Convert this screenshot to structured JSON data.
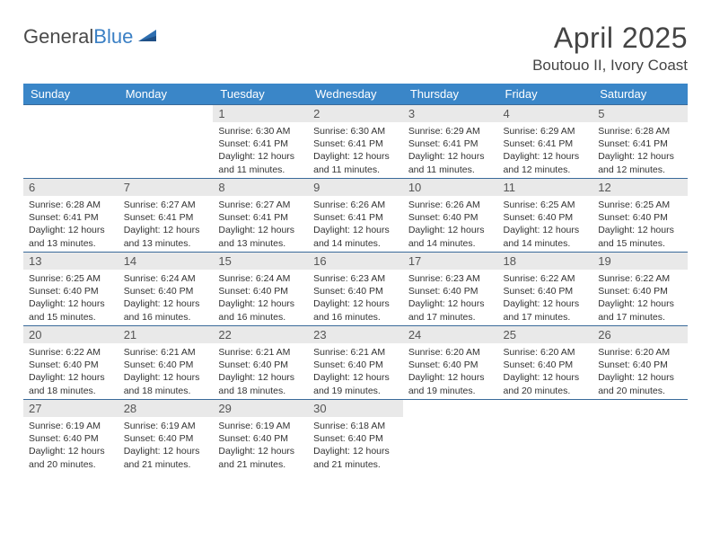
{
  "brand": {
    "name_gray": "General",
    "name_blue": "Blue"
  },
  "title": "April 2025",
  "location": "Boutouo II, Ivory Coast",
  "colors": {
    "header_bg": "#3a86c8",
    "header_text": "#ffffff",
    "daynum_bg": "#e9e9e9",
    "rule": "#3a6a9a",
    "body_text": "#333333",
    "logo_blue": "#3a7fc4"
  },
  "weekdays": [
    "Sunday",
    "Monday",
    "Tuesday",
    "Wednesday",
    "Thursday",
    "Friday",
    "Saturday"
  ],
  "weeks": [
    [
      null,
      null,
      {
        "n": "1",
        "sr": "Sunrise: 6:30 AM",
        "ss": "Sunset: 6:41 PM",
        "dl": "Daylight: 12 hours and 11 minutes."
      },
      {
        "n": "2",
        "sr": "Sunrise: 6:30 AM",
        "ss": "Sunset: 6:41 PM",
        "dl": "Daylight: 12 hours and 11 minutes."
      },
      {
        "n": "3",
        "sr": "Sunrise: 6:29 AM",
        "ss": "Sunset: 6:41 PM",
        "dl": "Daylight: 12 hours and 11 minutes."
      },
      {
        "n": "4",
        "sr": "Sunrise: 6:29 AM",
        "ss": "Sunset: 6:41 PM",
        "dl": "Daylight: 12 hours and 12 minutes."
      },
      {
        "n": "5",
        "sr": "Sunrise: 6:28 AM",
        "ss": "Sunset: 6:41 PM",
        "dl": "Daylight: 12 hours and 12 minutes."
      }
    ],
    [
      {
        "n": "6",
        "sr": "Sunrise: 6:28 AM",
        "ss": "Sunset: 6:41 PM",
        "dl": "Daylight: 12 hours and 13 minutes."
      },
      {
        "n": "7",
        "sr": "Sunrise: 6:27 AM",
        "ss": "Sunset: 6:41 PM",
        "dl": "Daylight: 12 hours and 13 minutes."
      },
      {
        "n": "8",
        "sr": "Sunrise: 6:27 AM",
        "ss": "Sunset: 6:41 PM",
        "dl": "Daylight: 12 hours and 13 minutes."
      },
      {
        "n": "9",
        "sr": "Sunrise: 6:26 AM",
        "ss": "Sunset: 6:41 PM",
        "dl": "Daylight: 12 hours and 14 minutes."
      },
      {
        "n": "10",
        "sr": "Sunrise: 6:26 AM",
        "ss": "Sunset: 6:40 PM",
        "dl": "Daylight: 12 hours and 14 minutes."
      },
      {
        "n": "11",
        "sr": "Sunrise: 6:25 AM",
        "ss": "Sunset: 6:40 PM",
        "dl": "Daylight: 12 hours and 14 minutes."
      },
      {
        "n": "12",
        "sr": "Sunrise: 6:25 AM",
        "ss": "Sunset: 6:40 PM",
        "dl": "Daylight: 12 hours and 15 minutes."
      }
    ],
    [
      {
        "n": "13",
        "sr": "Sunrise: 6:25 AM",
        "ss": "Sunset: 6:40 PM",
        "dl": "Daylight: 12 hours and 15 minutes."
      },
      {
        "n": "14",
        "sr": "Sunrise: 6:24 AM",
        "ss": "Sunset: 6:40 PM",
        "dl": "Daylight: 12 hours and 16 minutes."
      },
      {
        "n": "15",
        "sr": "Sunrise: 6:24 AM",
        "ss": "Sunset: 6:40 PM",
        "dl": "Daylight: 12 hours and 16 minutes."
      },
      {
        "n": "16",
        "sr": "Sunrise: 6:23 AM",
        "ss": "Sunset: 6:40 PM",
        "dl": "Daylight: 12 hours and 16 minutes."
      },
      {
        "n": "17",
        "sr": "Sunrise: 6:23 AM",
        "ss": "Sunset: 6:40 PM",
        "dl": "Daylight: 12 hours and 17 minutes."
      },
      {
        "n": "18",
        "sr": "Sunrise: 6:22 AM",
        "ss": "Sunset: 6:40 PM",
        "dl": "Daylight: 12 hours and 17 minutes."
      },
      {
        "n": "19",
        "sr": "Sunrise: 6:22 AM",
        "ss": "Sunset: 6:40 PM",
        "dl": "Daylight: 12 hours and 17 minutes."
      }
    ],
    [
      {
        "n": "20",
        "sr": "Sunrise: 6:22 AM",
        "ss": "Sunset: 6:40 PM",
        "dl": "Daylight: 12 hours and 18 minutes."
      },
      {
        "n": "21",
        "sr": "Sunrise: 6:21 AM",
        "ss": "Sunset: 6:40 PM",
        "dl": "Daylight: 12 hours and 18 minutes."
      },
      {
        "n": "22",
        "sr": "Sunrise: 6:21 AM",
        "ss": "Sunset: 6:40 PM",
        "dl": "Daylight: 12 hours and 18 minutes."
      },
      {
        "n": "23",
        "sr": "Sunrise: 6:21 AM",
        "ss": "Sunset: 6:40 PM",
        "dl": "Daylight: 12 hours and 19 minutes."
      },
      {
        "n": "24",
        "sr": "Sunrise: 6:20 AM",
        "ss": "Sunset: 6:40 PM",
        "dl": "Daylight: 12 hours and 19 minutes."
      },
      {
        "n": "25",
        "sr": "Sunrise: 6:20 AM",
        "ss": "Sunset: 6:40 PM",
        "dl": "Daylight: 12 hours and 20 minutes."
      },
      {
        "n": "26",
        "sr": "Sunrise: 6:20 AM",
        "ss": "Sunset: 6:40 PM",
        "dl": "Daylight: 12 hours and 20 minutes."
      }
    ],
    [
      {
        "n": "27",
        "sr": "Sunrise: 6:19 AM",
        "ss": "Sunset: 6:40 PM",
        "dl": "Daylight: 12 hours and 20 minutes."
      },
      {
        "n": "28",
        "sr": "Sunrise: 6:19 AM",
        "ss": "Sunset: 6:40 PM",
        "dl": "Daylight: 12 hours and 21 minutes."
      },
      {
        "n": "29",
        "sr": "Sunrise: 6:19 AM",
        "ss": "Sunset: 6:40 PM",
        "dl": "Daylight: 12 hours and 21 minutes."
      },
      {
        "n": "30",
        "sr": "Sunrise: 6:18 AM",
        "ss": "Sunset: 6:40 PM",
        "dl": "Daylight: 12 hours and 21 minutes."
      },
      null,
      null,
      null
    ]
  ]
}
